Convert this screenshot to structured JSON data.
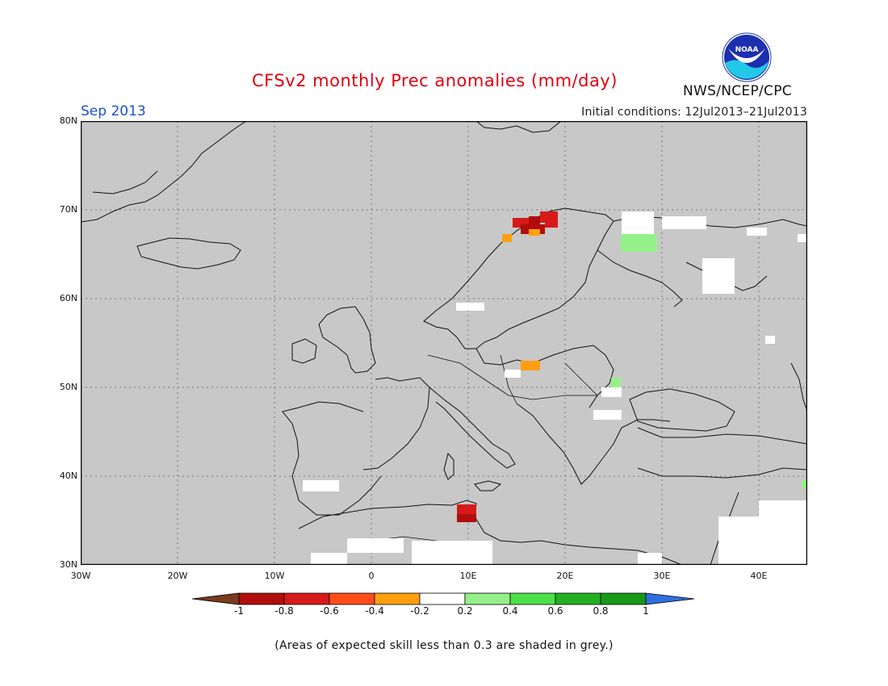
{
  "title": "CFSv2 monthly Prec anomalies (mm/day)",
  "month": "Sep 2013",
  "initial_conditions": "Initial conditions: 12Jul2013–21Jul2013",
  "agency": "NWS/NCEP/CPC",
  "logo_text": "NOAA",
  "footnote": "(Areas of expected skill less than 0.3 are shaded in grey.)",
  "map": {
    "lon_range": [
      -30,
      45
    ],
    "lat_range": [
      30,
      80
    ],
    "background_color": "#c8c8c8",
    "lat_labels": [
      "80N",
      "70N",
      "60N",
      "50N",
      "40N",
      "30N"
    ],
    "lon_labels": [
      "30W",
      "20W",
      "10W",
      "0",
      "10E",
      "20E",
      "30E",
      "40E"
    ]
  },
  "colorbar": {
    "labels": [
      "-1",
      "-0.8",
      "-0.6",
      "-0.4",
      "-0.2",
      "0.2",
      "0.4",
      "0.6",
      "0.8",
      "1"
    ],
    "colors": [
      "#7a3b1f",
      "#b10d0d",
      "#d61a1a",
      "#ff4d1a",
      "#ff9f10",
      "#ffffff",
      "#96f08a",
      "#4ce04a",
      "#22b022",
      "#169a16",
      "#2f6fe0"
    ]
  }
}
